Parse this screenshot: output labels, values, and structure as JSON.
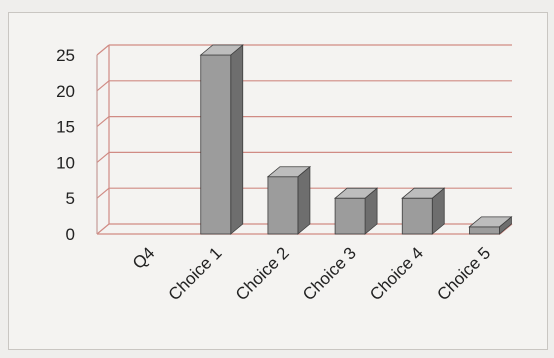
{
  "chart_data": {
    "type": "bar",
    "style": "3d-column",
    "categories": [
      "Q4",
      "Choice 1",
      "Choice 2",
      "Choice 3",
      "Choice 4",
      "Choice 5"
    ],
    "values": [
      0,
      25,
      8,
      5,
      5,
      1
    ],
    "title": "",
    "xlabel": "",
    "ylabel": "",
    "ylim": [
      0,
      25
    ],
    "yticks": [
      "0",
      "5",
      "10",
      "15",
      "20",
      "25"
    ],
    "grid": true,
    "legend": "none",
    "colors": {
      "bar_front": "#9c9c9c",
      "bar_side": "#6e6e6e",
      "bar_top": "#bdbdbd",
      "grid": "#d08b84"
    }
  }
}
